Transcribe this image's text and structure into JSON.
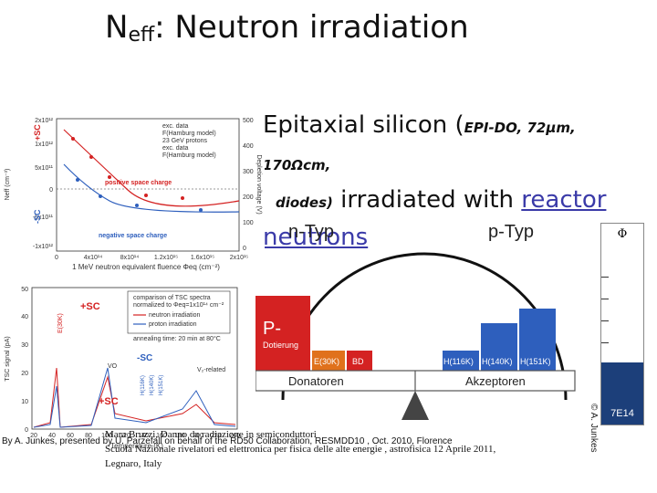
{
  "slide": {
    "title_main": "N",
    "title_sub": "eff",
    "title_rest": ": Neutron irradiation",
    "subtitle_lead": "Epitaxial silicon (",
    "subtitle_params": "EPI-DO, 72µm, 170Ωcm,",
    "subtitle_diodes": "diodes)",
    "subtitle_mid": " irradiated with ",
    "subtitle_link": "reactor neutrons"
  },
  "plot_top": {
    "left_ticks": [
      "2x10¹²",
      "1x10¹²",
      "5x10¹¹",
      "0",
      "-5x10¹¹",
      "-1x10¹²"
    ],
    "right_ticks": [
      "500",
      "400",
      "300",
      "200",
      "100",
      "0"
    ],
    "x_ticks": [
      "0",
      "4x10¹⁴",
      "8x10¹⁴",
      "1.2x10¹⁵",
      "1.6x10¹⁵",
      "2x10¹⁵"
    ],
    "x_label": "1 MeV neutron equivalent fluence Φeq (cm⁻²)",
    "y_label": "Neff (cm⁻³)",
    "y2_label": "Depletion voltage (V)",
    "legend": [
      "exc. data",
      "F(Hamburg model)",
      "23 GeV protons",
      "exc. data",
      "F(Hamburg model)"
    ],
    "plus_sc": "+SC",
    "minus_sc": "-SC",
    "pos_label": "positive space charge",
    "neg_label": "negative space charge"
  },
  "plot_bottom": {
    "x_label": "Temperature (K)",
    "y_label": "TSC signal (pA)",
    "x_ticks": [
      "20",
      "40",
      "60",
      "80",
      "100",
      "120",
      "140",
      "160",
      "180",
      "200",
      "220",
      "240"
    ],
    "y_ticks": [
      "0",
      "10",
      "20",
      "30",
      "40",
      "50"
    ],
    "box_line1": "comparison of TSC spectra",
    "box_line2": "normalized to Φeq=1x10¹⁴ cm⁻²",
    "legend_neutron": "neutron irradiation",
    "legend_proton": "proton irradiation",
    "annealing": "annealing time: 20 min at 80°C",
    "plus_sc_top": "+SC",
    "minus_sc": "-SC",
    "plus_sc_bottom": "+SC",
    "e_label": "E(30K)",
    "vo_label": "VO",
    "vi_label": "V₂-related",
    "h_labels": [
      "H(116K)",
      "H(140K)",
      "H(151K)"
    ]
  },
  "diagram": {
    "n_typ": "n-Typ",
    "p_typ": "p-Typ",
    "p_dotierung_title": "P-",
    "p_dotierung_sub": "Dotierung",
    "e30k": "E(30K)",
    "bd": "BD",
    "h116": "H(116K)",
    "h140": "H(140K)",
    "h151": "H(151K)",
    "donatoren": "Donatoren",
    "akzeptoren": "Akzeptoren"
  },
  "side_bar": {
    "phi": "Φ",
    "fluence": "7E14",
    "copyright": "© A. Junkes"
  },
  "credits": {
    "by": "By A. Junkes, presented by U. Parzefall on behalf of the RD50 Collaboration, RESMDD10 , Oct. 2010, Florence",
    "author": "Mara Bruzzi, Danno da radiazione in semiconduttori",
    "school": "Scuola Nazionale rivelatori ed elettronica per fisica delle alte energie , astrofisica 12 Aprile 2011,",
    "place": "Legnaro, Italy"
  },
  "colors": {
    "red_bar": "#d42222",
    "orange_bar": "#e0711c",
    "blue_bar": "#2e5fbd",
    "navy_side": "#1c3f7a",
    "link": "#3a3aa8"
  }
}
